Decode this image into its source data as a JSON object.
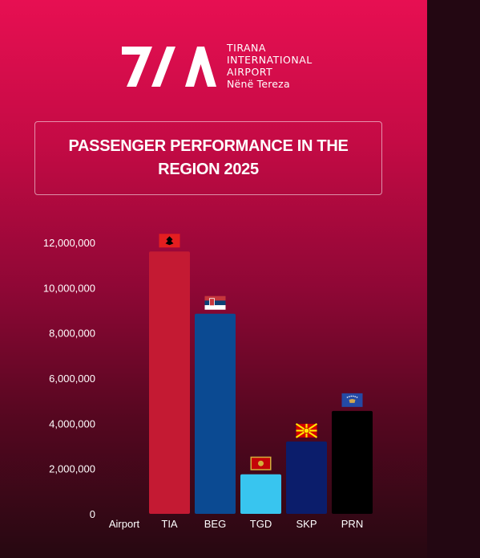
{
  "header": {
    "logo_mark": "7/A",
    "logo_lines": [
      "TIRANA",
      "INTERNATIONAL",
      "AIRPORT",
      "Nënë Tereza"
    ]
  },
  "title": "PASSENGER PERFORMANCE IN THE REGION 2025",
  "chart_data": {
    "type": "bar",
    "title": "PASSENGER PERFORMANCE IN THE REGION 2025",
    "xlabel": "Airport",
    "ylabel": "",
    "categories": [
      "TIA",
      "BEG",
      "TGD",
      "SKP",
      "PRN"
    ],
    "values": [
      11600000,
      8850000,
      1750000,
      3200000,
      4550000
    ],
    "ylim": [
      0,
      12000000
    ],
    "yticks": [
      "0",
      "2,000,000",
      "4,000,000",
      "6,000,000",
      "8,000,000",
      "10,000,000",
      "12,000,000"
    ],
    "bar_colors": [
      "#c41a33",
      "#0b4a92",
      "#38c5ef",
      "#0b1d6b",
      "#000000"
    ],
    "flags": [
      "albania-flag-icon",
      "serbia-flag-icon",
      "montenegro-flag-icon",
      "north-macedonia-flag-icon",
      "kosovo-flag-icon"
    ],
    "grid": false,
    "legend": "none"
  }
}
